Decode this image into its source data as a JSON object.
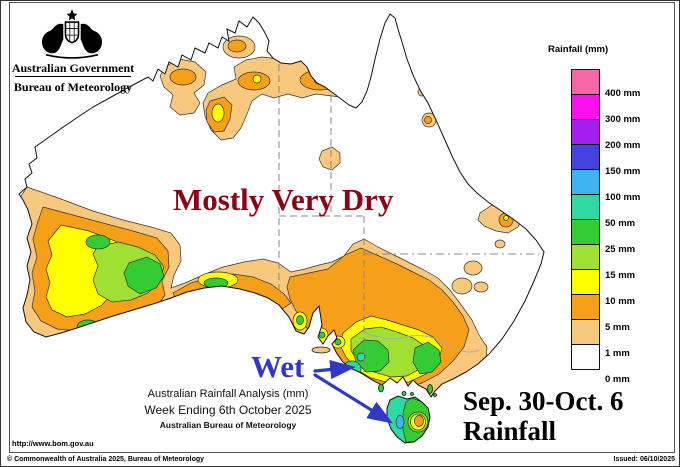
{
  "logo": {
    "government": "Australian Government",
    "bureau": "Bureau of Meteorology"
  },
  "legend": {
    "title": "Rainfall (mm)",
    "items": [
      {
        "color": "#F966A6",
        "label": "400 mm"
      },
      {
        "color": "#FB10F0",
        "label": "300 mm"
      },
      {
        "color": "#A21FEF",
        "label": "200 mm"
      },
      {
        "color": "#4242DE",
        "label": "150 mm"
      },
      {
        "color": "#3FB5F0",
        "label": "100 mm"
      },
      {
        "color": "#2ED9A2",
        "label": "50 mm"
      },
      {
        "color": "#33CC33",
        "label": "25 mm"
      },
      {
        "color": "#A0E032",
        "label": "15 mm"
      },
      {
        "color": "#FFFF00",
        "label": "10 mm"
      },
      {
        "color": "#F6A019",
        "label": "5 mm"
      },
      {
        "color": "#F8C87E",
        "label": "1 mm"
      },
      {
        "color": "#FFFFFF",
        "label": "0 mm"
      }
    ]
  },
  "annotations": {
    "dry": "Mostly Very Dry",
    "wet": "Wet"
  },
  "caption": {
    "line1": "Australian Rainfall Analysis (mm)",
    "line2": "Week Ending 6th October 2025",
    "line3": "Australian Bureau of Meteorology"
  },
  "period": {
    "line1": "Sep. 30-Oct. 6",
    "line2": "Rainfall"
  },
  "footer": {
    "url": "http://www.bom.gov.au",
    "copyright": "© Commonwealth of Australia 2025, Bureau of Meteorology",
    "issued": "Issued: 06/10/2025"
  },
  "colors": {
    "dry_text": "#8B0013",
    "wet_text": "#3038C8",
    "map_tan": "#F8C87E",
    "map_orange": "#F6A019",
    "map_yellow": "#FFFF00",
    "map_yellowgreen": "#A0E032",
    "map_green": "#33CC33",
    "map_teal": "#2ED9A2",
    "map_skyblue": "#3FB5F0"
  }
}
